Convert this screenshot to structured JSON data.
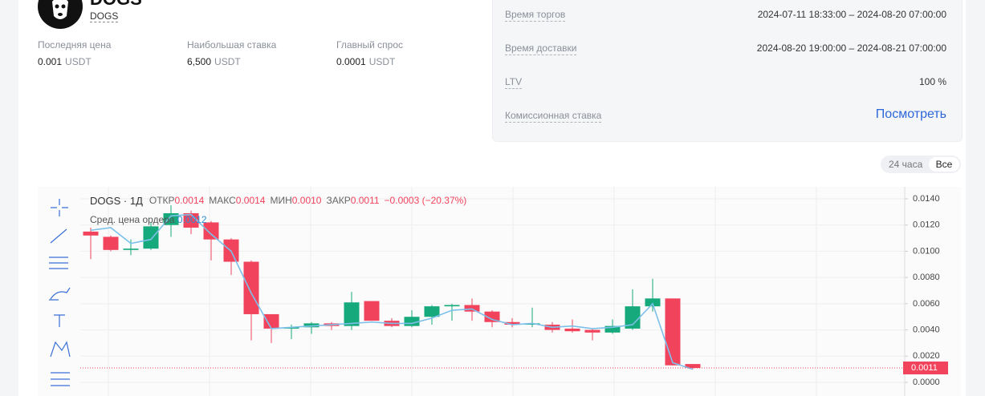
{
  "header": {
    "title": "DOGS",
    "subtitle": "DOGS"
  },
  "stats": [
    {
      "label": "Последняя цена",
      "value": "0.001",
      "unit": "USDT"
    },
    {
      "label": "Наибольшая ставка",
      "value": "6,500",
      "unit": "USDT"
    },
    {
      "label": "Главный спрос",
      "value": "0.0001",
      "unit": "USDT"
    }
  ],
  "details": [
    {
      "label": "Время торгов",
      "value": "2024-07-11 18:33:00 – 2024-08-20 07:00:00"
    },
    {
      "label": "Время доставки",
      "value": "2024-08-20 19:00:00 – 2024-08-21 07:00:00"
    },
    {
      "label": "LTV",
      "value": "100 %"
    },
    {
      "label": "Комиссионная ставка",
      "value": "Посмотреть"
    }
  ],
  "toggle": [
    "24 часа",
    "Все"
  ],
  "chart_data": {
    "type": "candlestick",
    "symbol": "DOGS · 1Д",
    "legend": [
      {
        "label": "ОТКР",
        "value": "0.0014"
      },
      {
        "label": "МАКС",
        "value": "0.0014"
      },
      {
        "label": "МИН",
        "value": "0.0010"
      },
      {
        "label": "ЗАКР",
        "value": "0.0011"
      }
    ],
    "change": "−0.0003 (−20.37%)",
    "up_color": "#16a97c",
    "down_color": "#f2435d",
    "open": [
      0.0115,
      0.0111,
      0.0101,
      0.0102,
      0.012,
      0.0129,
      0.0122,
      0.0109,
      0.0092,
      0.0052,
      0.0041,
      0.0042,
      0.0045,
      0.0043,
      0.0062,
      0.0047,
      0.0043,
      0.005,
      0.0058,
      0.0059,
      0.0054,
      0.0046,
      0.0044,
      0.0044,
      0.0041,
      0.004,
      0.0038,
      0.0041,
      0.0058,
      0.0064,
      0.0014
    ],
    "high": [
      0.0118,
      0.0112,
      0.0109,
      0.0122,
      0.0135,
      0.0131,
      0.0123,
      0.011,
      0.0093,
      0.0052,
      0.0044,
      0.0046,
      0.0046,
      0.0069,
      0.0062,
      0.0049,
      0.0055,
      0.0059,
      0.006,
      0.0064,
      0.0055,
      0.0049,
      0.0057,
      0.0046,
      0.0048,
      0.0041,
      0.0048,
      0.0071,
      0.0079,
      0.0064,
      0.0014
    ],
    "low": [
      0.0094,
      0.01,
      0.0097,
      0.0101,
      0.0111,
      0.0113,
      0.0093,
      0.0082,
      0.0032,
      0.003,
      0.0033,
      0.0037,
      0.004,
      0.004,
      0.0047,
      0.0042,
      0.0042,
      0.0044,
      0.0047,
      0.0047,
      0.0042,
      0.0042,
      0.0042,
      0.0038,
      0.0038,
      0.0032,
      0.0037,
      0.004,
      0.0054,
      0.0013,
      0.001
    ],
    "close": [
      0.0112,
      0.0101,
      0.0102,
      0.0119,
      0.0129,
      0.0118,
      0.0109,
      0.0092,
      0.0052,
      0.0041,
      0.0042,
      0.0045,
      0.0043,
      0.0061,
      0.0047,
      0.0043,
      0.005,
      0.0058,
      0.0059,
      0.0054,
      0.0046,
      0.0044,
      0.0045,
      0.004,
      0.0039,
      0.0038,
      0.0043,
      0.0058,
      0.0064,
      0.0013,
      0.0011
    ],
    "avg_line": {
      "name": "Сред. цена ордера",
      "value": "0.0012",
      "color": "#7cc0ea",
      "values": [
        0.0116,
        0.0118,
        0.0106,
        0.0109,
        0.0127,
        0.0128,
        0.0113,
        0.01,
        0.0068,
        0.0041,
        0.0042,
        0.0043,
        0.0044,
        0.0045,
        0.0046,
        0.0045,
        0.0045,
        0.0049,
        0.0055,
        0.0056,
        0.0048,
        0.0044,
        0.0045,
        0.0042,
        0.0043,
        0.0041,
        0.0042,
        0.0044,
        0.006,
        0.0015,
        0.001
      ]
    },
    "last_price": 0.0011,
    "ylim": [
      0,
      0.014
    ],
    "yticks": [
      {
        "value": 0,
        "label": "0.0000"
      },
      {
        "value": 0.002,
        "label": "0.0020"
      },
      {
        "value": 0.004,
        "label": "0.0040"
      },
      {
        "value": 0.006,
        "label": "0.0060"
      },
      {
        "value": 0.008,
        "label": "0.0080"
      },
      {
        "value": 0.01,
        "label": "0.0100"
      },
      {
        "value": 0.012,
        "label": "0.0120"
      },
      {
        "value": 0.014,
        "label": "0.0140"
      }
    ],
    "grid": true
  }
}
